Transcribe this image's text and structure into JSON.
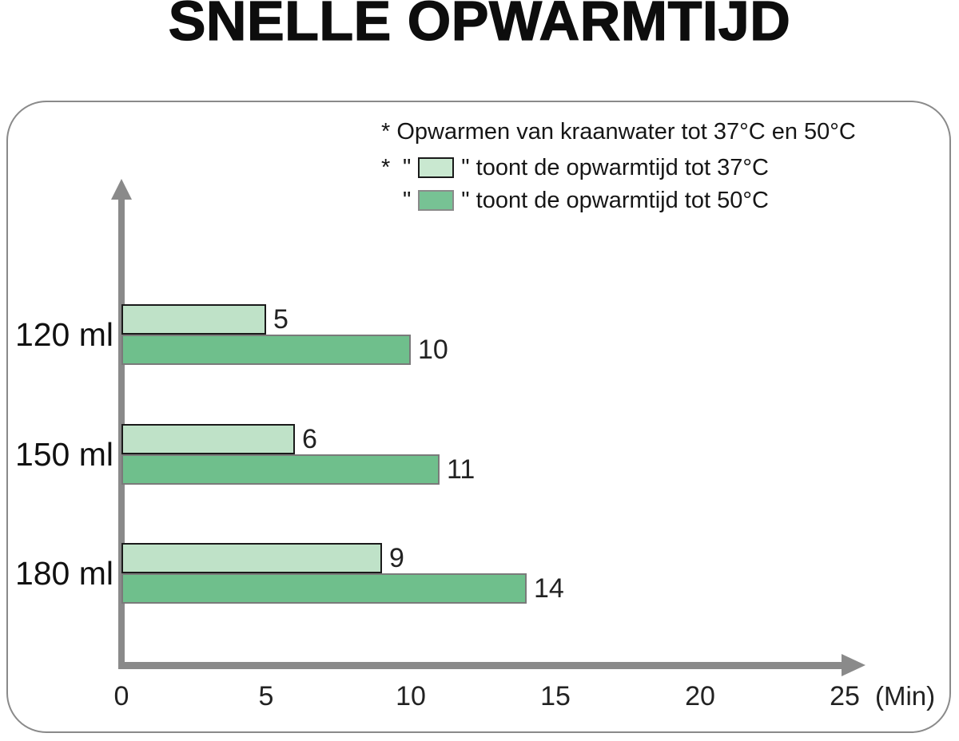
{
  "title": "SNELLE OPWARMTIJD",
  "panel": {
    "border_color": "#8a8a8a"
  },
  "axes": {
    "color": "#8a8a8a"
  },
  "legend": {
    "note": "* Opwarmen van kraanwater tot 37°C en 50°C",
    "items": [
      {
        "star": "*",
        "quote": "\"",
        "text_after": "\" toont de opwarmtijd tot 37°C",
        "swatch_color": "#c9e8d0",
        "swatch_border": "#1a1a1a"
      },
      {
        "star": "",
        "quote": "\"",
        "text_after": "\" toont de opwarmtijd tot 50°C",
        "swatch_color": "#77c294",
        "swatch_border": "#8a8a8a"
      }
    ]
  },
  "chart_data": {
    "type": "bar",
    "orientation": "horizontal",
    "title": "SNELLE OPWARMTIJD",
    "categories": [
      "120 ml",
      "150 ml",
      "180 ml"
    ],
    "series": [
      {
        "name": "opwarmtijd tot 37°C",
        "values": [
          5,
          6,
          9
        ],
        "color": "#bfe2c8",
        "border_color": "#1a1a1a"
      },
      {
        "name": "opwarmtijd tot 50°C",
        "values": [
          10,
          11,
          14
        ],
        "color": "#6fbf8c",
        "border_color": "#7a7a7a"
      }
    ],
    "x_ticks": [
      0,
      5,
      10,
      15,
      20,
      25
    ],
    "xlim": [
      0,
      25
    ],
    "xlabel": "(Min)",
    "value_labels_shown": true,
    "grid": false,
    "legend_position": "top-right"
  }
}
